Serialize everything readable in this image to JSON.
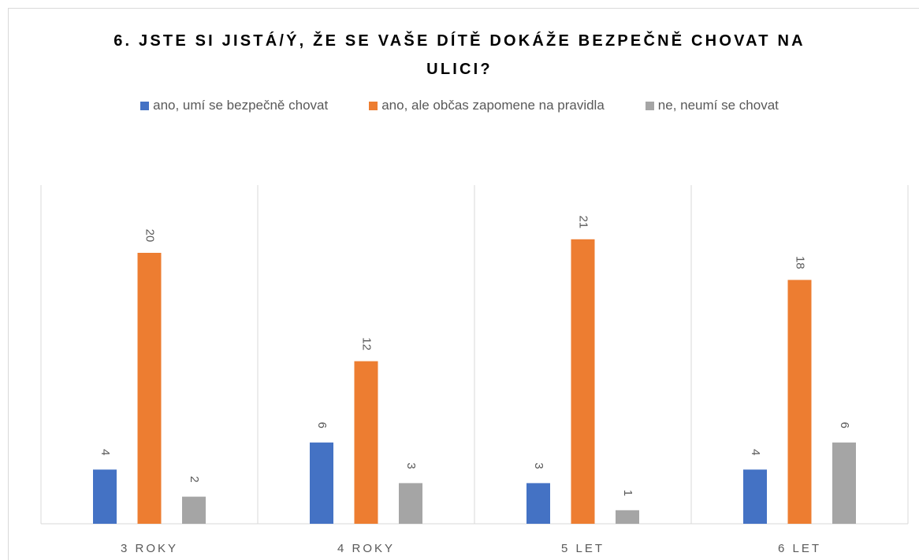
{
  "chart_data": {
    "type": "bar",
    "title": "6. JSTE SI JISTÁ/Ý, ŽE SE VAŠE DÍTĚ DOKÁŽE BEZPEČNĚ CHOVAT NA ULICI?",
    "categories": [
      "3 ROKY",
      "4 ROKY",
      "5 LET",
      "6 LET"
    ],
    "series": [
      {
        "name": "ano, umí se bezpečně chovat",
        "color": "#4472c4",
        "values": [
          4,
          6,
          3,
          4
        ]
      },
      {
        "name": "ano, ale občas zapomene na pravidla",
        "color": "#ed7d31",
        "values": [
          20,
          12,
          21,
          18
        ]
      },
      {
        "name": "ne, neumí se chovat",
        "color": "#a5a5a5",
        "values": [
          2,
          3,
          1,
          6
        ]
      }
    ],
    "ylim": [
      0,
      25
    ],
    "legend": "top"
  }
}
